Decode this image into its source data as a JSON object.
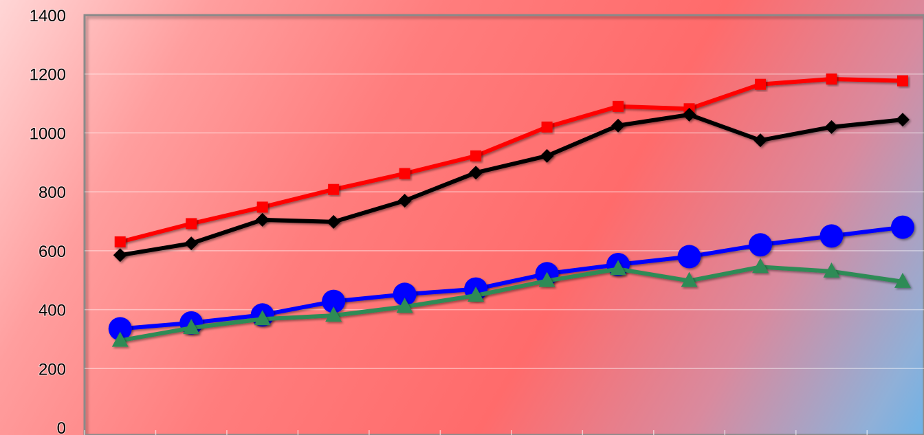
{
  "chart_data": {
    "type": "line",
    "title": "",
    "xlabel": "",
    "ylabel": "",
    "ylim": [
      0,
      1400
    ],
    "yticks": [
      "0",
      "200",
      "400",
      "600",
      "800",
      "1000",
      "1200",
      "1400"
    ],
    "x": [
      1,
      2,
      3,
      4,
      5,
      6,
      7,
      8,
      9,
      10,
      11,
      12
    ],
    "grid": true,
    "legend": "none",
    "series": [
      {
        "color": "#ff0000",
        "marker": "square",
        "values": [
          630,
          692,
          748,
          808,
          862,
          922,
          1020,
          1090,
          1082,
          1165,
          1183,
          1177
        ]
      },
      {
        "color": "#000000",
        "marker": "diamond",
        "values": [
          585,
          625,
          705,
          698,
          770,
          865,
          922,
          1025,
          1062,
          975,
          1020,
          1045
        ]
      },
      {
        "color": "#0000ff",
        "marker": "circle",
        "values": [
          335,
          355,
          382,
          428,
          452,
          470,
          522,
          553,
          580,
          620,
          650,
          680
        ]
      },
      {
        "color": "#2e8b57",
        "marker": "triangle",
        "values": [
          295,
          338,
          368,
          380,
          410,
          448,
          498,
          538,
          498,
          545,
          530,
          495
        ]
      }
    ]
  }
}
